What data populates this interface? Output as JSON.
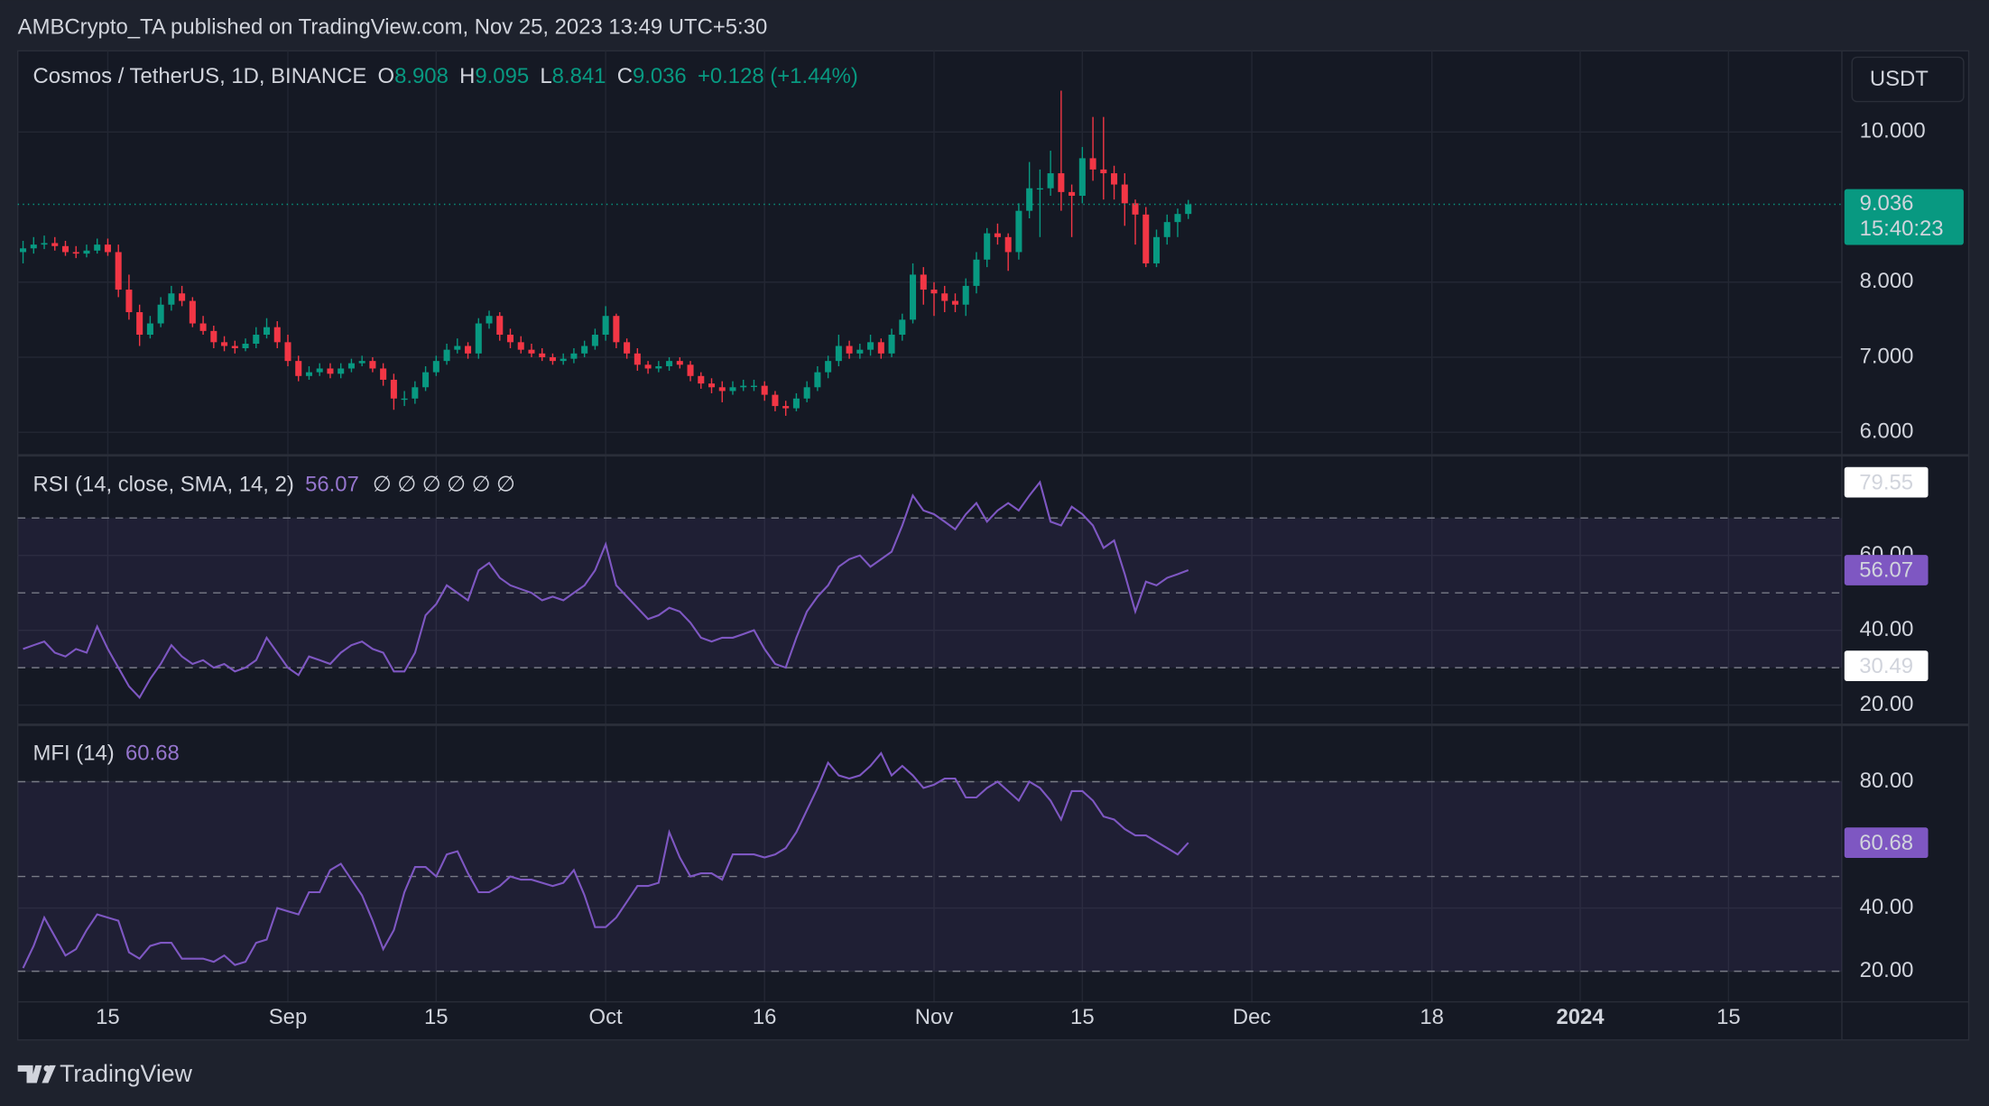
{
  "header": {
    "published": "AMBCrypto_TA published on TradingView.com, Nov 25, 2023 13:49 UTC+5:30",
    "brand": "TradingView"
  },
  "chart_data": [
    {
      "type": "candlestick",
      "title": "Cosmos / TetherUS, 1D, BINANCE",
      "ohlc_labels": [
        "O",
        "H",
        "L",
        "C"
      ],
      "change": "+0.128 (+1.44%)",
      "currency": "USDT",
      "countdown": "15:40:23",
      "open": [
        8.4,
        8.45,
        8.5,
        8.52,
        8.48,
        8.4,
        8.38,
        8.42,
        8.5,
        8.4,
        7.9,
        7.6,
        7.3,
        7.45,
        7.7,
        7.85,
        7.75,
        7.45,
        7.35,
        7.2,
        7.15,
        7.12,
        7.18,
        7.3,
        7.4,
        7.2,
        6.95,
        6.75,
        6.8,
        6.85,
        6.78,
        6.85,
        6.92,
        6.95,
        6.85,
        6.7,
        6.45,
        6.45,
        6.6,
        6.8,
        6.95,
        7.1,
        7.15,
        7.05,
        7.45,
        7.55,
        7.3,
        7.2,
        7.1,
        7.05,
        7.0,
        6.95,
        6.98,
        7.05,
        7.15,
        7.3,
        7.55,
        7.2,
        7.05,
        6.9,
        6.85,
        6.88,
        6.95,
        6.9,
        6.75,
        6.65,
        6.6,
        6.55,
        6.6,
        6.62,
        6.62,
        6.5,
        6.35,
        6.32,
        6.45,
        6.6,
        6.8,
        6.95,
        7.15,
        7.05,
        7.1,
        7.2,
        7.05,
        7.3,
        7.5,
        8.1,
        7.9,
        7.85,
        7.75,
        7.7,
        7.95,
        8.3,
        8.65,
        8.6,
        8.4,
        8.95,
        9.25,
        9.25,
        9.45,
        9.2,
        9.15,
        9.65,
        9.5,
        9.45,
        9.3,
        9.05,
        8.9,
        8.25,
        8.6,
        8.8,
        8.908
      ],
      "high": [
        8.55,
        8.6,
        8.62,
        8.6,
        8.55,
        8.48,
        8.5,
        8.58,
        8.58,
        8.5,
        8.1,
        7.7,
        7.55,
        7.8,
        7.95,
        7.95,
        7.8,
        7.55,
        7.42,
        7.28,
        7.22,
        7.25,
        7.4,
        7.52,
        7.48,
        7.3,
        7.02,
        6.88,
        6.92,
        6.92,
        6.92,
        6.98,
        7.02,
        7.0,
        6.92,
        6.78,
        6.55,
        6.68,
        6.88,
        7.02,
        7.18,
        7.25,
        7.2,
        7.52,
        7.62,
        7.6,
        7.38,
        7.28,
        7.18,
        7.12,
        7.05,
        7.05,
        7.12,
        7.22,
        7.38,
        7.68,
        7.58,
        7.25,
        7.12,
        6.95,
        6.95,
        7.0,
        7.0,
        6.95,
        6.8,
        6.72,
        6.68,
        6.68,
        6.7,
        6.7,
        6.68,
        6.55,
        6.42,
        6.52,
        6.68,
        6.88,
        7.02,
        7.3,
        7.22,
        7.18,
        7.3,
        7.25,
        7.38,
        7.58,
        8.25,
        8.2,
        8.0,
        7.95,
        7.85,
        8.05,
        8.4,
        8.72,
        8.78,
        8.65,
        9.05,
        9.6,
        9.5,
        9.75,
        10.55,
        9.3,
        9.8,
        10.2,
        10.2,
        9.55,
        9.45,
        9.1,
        9.0,
        8.7,
        8.9,
        8.98,
        9.095
      ],
      "low": [
        8.25,
        8.38,
        8.44,
        8.42,
        8.35,
        8.32,
        8.33,
        8.38,
        8.35,
        7.8,
        7.5,
        7.15,
        7.25,
        7.4,
        7.62,
        7.68,
        7.4,
        7.3,
        7.12,
        7.08,
        7.05,
        7.08,
        7.12,
        7.25,
        7.12,
        6.88,
        6.68,
        6.7,
        6.75,
        6.72,
        6.72,
        6.8,
        6.88,
        6.8,
        6.62,
        6.3,
        6.35,
        6.38,
        6.55,
        6.75,
        6.9,
        7.05,
        6.98,
        6.98,
        7.38,
        7.22,
        7.12,
        7.05,
        7.0,
        6.95,
        6.9,
        6.9,
        6.92,
        7.0,
        7.1,
        7.22,
        7.12,
        6.98,
        6.82,
        6.78,
        6.8,
        6.82,
        6.85,
        6.68,
        6.58,
        6.52,
        6.4,
        6.5,
        6.55,
        6.55,
        6.42,
        6.28,
        6.22,
        6.28,
        6.4,
        6.55,
        6.72,
        6.88,
        6.98,
        6.98,
        7.02,
        6.98,
        7.0,
        7.22,
        7.45,
        7.7,
        7.55,
        7.6,
        7.6,
        7.55,
        7.85,
        8.2,
        8.5,
        8.15,
        8.3,
        8.85,
        8.6,
        9.15,
        8.95,
        8.6,
        9.05,
        9.35,
        9.1,
        9.1,
        8.75,
        8.5,
        8.2,
        8.2,
        8.5,
        8.6,
        8.841
      ],
      "close": [
        8.45,
        8.5,
        8.52,
        8.48,
        8.4,
        8.38,
        8.42,
        8.5,
        8.4,
        7.9,
        7.6,
        7.3,
        7.45,
        7.7,
        7.85,
        7.75,
        7.45,
        7.35,
        7.2,
        7.15,
        7.12,
        7.18,
        7.3,
        7.4,
        7.2,
        6.95,
        6.75,
        6.8,
        6.85,
        6.78,
        6.85,
        6.92,
        6.95,
        6.85,
        6.7,
        6.45,
        6.45,
        6.6,
        6.8,
        6.95,
        7.1,
        7.15,
        7.05,
        7.45,
        7.55,
        7.3,
        7.2,
        7.1,
        7.05,
        7.0,
        6.95,
        6.98,
        7.05,
        7.15,
        7.3,
        7.55,
        7.2,
        7.05,
        6.9,
        6.85,
        6.88,
        6.95,
        6.9,
        6.75,
        6.65,
        6.6,
        6.55,
        6.6,
        6.62,
        6.62,
        6.5,
        6.35,
        6.32,
        6.45,
        6.6,
        6.8,
        6.95,
        7.15,
        7.05,
        7.1,
        7.2,
        7.05,
        7.3,
        7.5,
        8.1,
        7.9,
        7.85,
        7.75,
        7.7,
        7.95,
        8.3,
        8.65,
        8.6,
        8.4,
        8.95,
        9.25,
        9.25,
        9.45,
        9.2,
        9.15,
        9.65,
        9.5,
        9.45,
        9.3,
        9.05,
        8.9,
        8.25,
        8.6,
        8.8,
        8.908,
        9.036
      ],
      "up_color": "#089981",
      "down_color": "#f23645",
      "xlim": [
        -0.5,
        171.7
      ],
      "ylim": [
        5.71,
        11.08
      ],
      "yticks": [
        {
          "value": 6,
          "label": "6.000"
        },
        {
          "value": 7,
          "label": "7.000"
        },
        {
          "value": 8,
          "label": "8.000"
        },
        {
          "value": 10,
          "label": "10.000"
        }
      ],
      "grid": true
    },
    {
      "type": "line",
      "title": "RSI (14, close, SMA, 14, 2)",
      "flags": "∅ ∅ ∅ ∅ ∅ ∅",
      "values": [
        35,
        36,
        37,
        34,
        33,
        35,
        34,
        41,
        35,
        30,
        25,
        22,
        27,
        31,
        36,
        33,
        31,
        32,
        30,
        31,
        29,
        30,
        32,
        38,
        34,
        30,
        28,
        33,
        32,
        31,
        34,
        36,
        37,
        35,
        34,
        29,
        29,
        34,
        44,
        47,
        52,
        50,
        48,
        56,
        58,
        54,
        52,
        51,
        50,
        48,
        49,
        48,
        50,
        52,
        56,
        63,
        52,
        49,
        46,
        43,
        44,
        46,
        45,
        42,
        38,
        37,
        38,
        38,
        39,
        40,
        35,
        31,
        30,
        38,
        45,
        49,
        52,
        57,
        59,
        60,
        57,
        59,
        61,
        68,
        76,
        72,
        71,
        69,
        67,
        71,
        74,
        69,
        72,
        74,
        72,
        76,
        79.55,
        69,
        68,
        73,
        71,
        68,
        62,
        64,
        55,
        45,
        53,
        52,
        54,
        55,
        56.07
      ],
      "color": "#7e57c2",
      "bands": [
        30,
        50,
        70
      ],
      "xlim": [
        -0.5,
        171.7
      ],
      "ylim": [
        14.9,
        86.4
      ],
      "yticks": [
        {
          "value": 20,
          "label": "20.00"
        },
        {
          "value": 40,
          "label": "40.00"
        },
        {
          "value": 60,
          "label": "60.00"
        }
      ],
      "price_labels": [
        79.55,
        30.49
      ],
      "grid": true
    },
    {
      "type": "line",
      "title": "MFI (14)",
      "values": [
        21,
        28,
        37,
        31,
        25,
        27,
        33,
        38,
        37,
        36,
        26,
        24,
        28,
        29,
        29,
        24,
        24,
        24,
        23,
        25,
        22,
        23,
        29,
        30,
        40,
        39,
        38,
        45,
        45,
        52,
        54,
        49,
        44,
        36,
        27,
        33,
        45,
        53,
        53,
        50,
        57,
        58,
        51,
        45,
        45,
        47,
        50,
        49,
        49,
        48,
        47,
        48,
        52,
        44,
        34,
        34,
        37,
        42,
        47,
        47,
        48,
        64,
        56,
        50,
        51,
        51,
        49,
        57,
        57,
        57,
        56,
        57,
        59,
        64,
        71,
        78,
        86,
        82,
        81,
        82,
        85,
        89,
        82,
        85,
        82,
        78,
        79,
        81,
        81,
        75,
        75,
        78,
        80,
        77,
        74,
        80,
        78,
        74,
        68,
        77,
        77,
        74,
        69,
        68,
        65,
        63,
        63,
        61,
        59,
        57,
        60.68
      ],
      "color": "#7e57c2",
      "bands": [
        20,
        50,
        80
      ],
      "xlim": [
        -0.5,
        171.7
      ],
      "ylim": [
        10.3,
        97.8
      ],
      "yticks": [
        {
          "value": 20,
          "label": "20.00"
        },
        {
          "value": 40,
          "label": "40.00"
        },
        {
          "value": 80,
          "label": "80.00"
        }
      ],
      "grid": true,
      "xticks": [
        {
          "value": 8,
          "label": "15"
        },
        {
          "value": 25,
          "label": "Sep"
        },
        {
          "value": 39,
          "label": "15"
        },
        {
          "value": 55,
          "label": "Oct"
        },
        {
          "value": 70,
          "label": "16"
        },
        {
          "value": 86,
          "label": "Nov"
        },
        {
          "value": 100,
          "label": "15"
        },
        {
          "value": 116,
          "label": "Dec"
        },
        {
          "value": 133,
          "label": "18"
        },
        {
          "value": 147,
          "label": "2024"
        },
        {
          "value": 161,
          "label": "15"
        }
      ]
    }
  ]
}
